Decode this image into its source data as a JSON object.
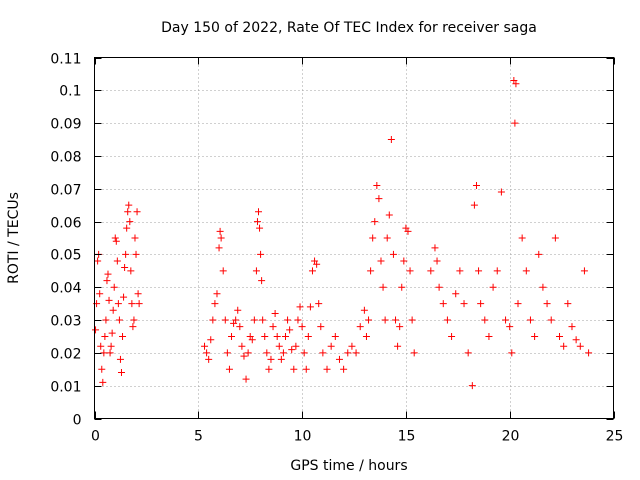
{
  "chart_data": {
    "type": "scatter",
    "title": "Day 150 of 2022, Rate Of TEC Index for receiver saga",
    "xlabel": "GPS time / hours",
    "ylabel": "ROTI / TECUs",
    "xlim": [
      0,
      25
    ],
    "ylim": [
      0,
      0.11
    ],
    "x_ticks": [
      0,
      5,
      10,
      15,
      20,
      25
    ],
    "x_tick_labels": [
      "0",
      "5",
      "10",
      "15",
      "20",
      "25"
    ],
    "y_ticks": [
      0,
      0.01,
      0.02,
      0.03,
      0.04,
      0.05,
      0.06,
      0.07,
      0.08,
      0.09,
      0.1,
      0.11
    ],
    "y_tick_labels": [
      "0",
      "0.01",
      "0.02",
      "0.03",
      "0.04",
      "0.05",
      "0.06",
      "0.07",
      "0.08",
      "0.09",
      "0.1",
      "0.11"
    ],
    "grid": true,
    "marker": "+",
    "color": "#ff0000",
    "series": [
      {
        "points": [
          [
            0.05,
            0.027
          ],
          [
            0.1,
            0.035
          ],
          [
            0.15,
            0.048
          ],
          [
            0.2,
            0.05
          ],
          [
            0.25,
            0.038
          ],
          [
            0.3,
            0.022
          ],
          [
            0.35,
            0.015
          ],
          [
            0.4,
            0.011
          ],
          [
            0.45,
            0.02
          ],
          [
            0.5,
            0.025
          ],
          [
            0.55,
            0.03
          ],
          [
            0.6,
            0.042
          ],
          [
            0.65,
            0.044
          ],
          [
            0.7,
            0.036
          ],
          [
            0.75,
            0.02
          ],
          [
            0.8,
            0.022
          ],
          [
            0.85,
            0.026
          ],
          [
            0.9,
            0.033
          ],
          [
            0.95,
            0.04
          ],
          [
            1.0,
            0.055
          ],
          [
            1.05,
            0.054
          ],
          [
            1.1,
            0.048
          ],
          [
            1.15,
            0.035
          ],
          [
            1.2,
            0.03
          ],
          [
            1.25,
            0.018
          ],
          [
            1.3,
            0.014
          ],
          [
            1.35,
            0.025
          ],
          [
            1.4,
            0.037
          ],
          [
            1.45,
            0.046
          ],
          [
            1.5,
            0.05
          ],
          [
            1.55,
            0.058
          ],
          [
            1.6,
            0.063
          ],
          [
            1.65,
            0.065
          ],
          [
            1.7,
            0.06
          ],
          [
            1.75,
            0.045
          ],
          [
            1.8,
            0.035
          ],
          [
            1.85,
            0.028
          ],
          [
            1.9,
            0.03
          ],
          [
            1.95,
            0.055
          ],
          [
            2.0,
            0.05
          ],
          [
            2.05,
            0.063
          ],
          [
            2.1,
            0.038
          ],
          [
            2.15,
            0.035
          ],
          [
            5.3,
            0.022
          ],
          [
            5.4,
            0.02
          ],
          [
            5.5,
            0.018
          ],
          [
            5.6,
            0.024
          ],
          [
            5.7,
            0.03
          ],
          [
            5.8,
            0.035
          ],
          [
            5.9,
            0.038
          ],
          [
            6.0,
            0.052
          ],
          [
            6.05,
            0.057
          ],
          [
            6.1,
            0.055
          ],
          [
            6.2,
            0.045
          ],
          [
            6.3,
            0.03
          ],
          [
            6.4,
            0.02
          ],
          [
            6.5,
            0.015
          ],
          [
            6.6,
            0.025
          ],
          [
            6.7,
            0.029
          ],
          [
            6.8,
            0.03
          ],
          [
            6.9,
            0.033
          ],
          [
            7.0,
            0.028
          ],
          [
            7.1,
            0.022
          ],
          [
            7.2,
            0.019
          ],
          [
            7.3,
            0.012
          ],
          [
            7.4,
            0.02
          ],
          [
            7.5,
            0.025
          ],
          [
            7.6,
            0.024
          ],
          [
            7.7,
            0.03
          ],
          [
            7.8,
            0.045
          ],
          [
            7.85,
            0.06
          ],
          [
            7.9,
            0.063
          ],
          [
            7.95,
            0.058
          ],
          [
            8.0,
            0.05
          ],
          [
            8.05,
            0.042
          ],
          [
            8.1,
            0.03
          ],
          [
            8.2,
            0.025
          ],
          [
            8.3,
            0.02
          ],
          [
            8.4,
            0.015
          ],
          [
            8.5,
            0.018
          ],
          [
            8.6,
            0.028
          ],
          [
            8.7,
            0.032
          ],
          [
            8.8,
            0.025
          ],
          [
            8.9,
            0.022
          ],
          [
            9.0,
            0.018
          ],
          [
            9.1,
            0.02
          ],
          [
            9.2,
            0.025
          ],
          [
            9.3,
            0.03
          ],
          [
            9.4,
            0.027
          ],
          [
            9.5,
            0.021
          ],
          [
            9.6,
            0.015
          ],
          [
            9.7,
            0.022
          ],
          [
            9.8,
            0.03
          ],
          [
            9.9,
            0.034
          ],
          [
            10.0,
            0.028
          ],
          [
            10.1,
            0.02
          ],
          [
            10.2,
            0.015
          ],
          [
            10.3,
            0.025
          ],
          [
            10.4,
            0.034
          ],
          [
            10.5,
            0.045
          ],
          [
            10.6,
            0.048
          ],
          [
            10.7,
            0.047
          ],
          [
            10.8,
            0.035
          ],
          [
            10.9,
            0.028
          ],
          [
            11.0,
            0.02
          ],
          [
            11.2,
            0.015
          ],
          [
            11.4,
            0.022
          ],
          [
            11.6,
            0.025
          ],
          [
            11.8,
            0.018
          ],
          [
            12.0,
            0.015
          ],
          [
            12.2,
            0.02
          ],
          [
            12.4,
            0.022
          ],
          [
            12.6,
            0.02
          ],
          [
            12.8,
            0.028
          ],
          [
            13.0,
            0.033
          ],
          [
            13.1,
            0.025
          ],
          [
            13.2,
            0.03
          ],
          [
            13.3,
            0.045
          ],
          [
            13.4,
            0.055
          ],
          [
            13.5,
            0.06
          ],
          [
            13.6,
            0.071
          ],
          [
            13.7,
            0.067
          ],
          [
            13.8,
            0.048
          ],
          [
            13.9,
            0.04
          ],
          [
            14.0,
            0.03
          ],
          [
            14.1,
            0.055
          ],
          [
            14.2,
            0.062
          ],
          [
            14.3,
            0.085
          ],
          [
            14.4,
            0.05
          ],
          [
            14.5,
            0.03
          ],
          [
            14.6,
            0.022
          ],
          [
            14.7,
            0.028
          ],
          [
            14.8,
            0.04
          ],
          [
            14.9,
            0.048
          ],
          [
            15.0,
            0.058
          ],
          [
            15.1,
            0.057
          ],
          [
            15.2,
            0.045
          ],
          [
            15.3,
            0.03
          ],
          [
            15.4,
            0.02
          ],
          [
            16.2,
            0.045
          ],
          [
            16.4,
            0.052
          ],
          [
            16.5,
            0.048
          ],
          [
            16.6,
            0.04
          ],
          [
            16.8,
            0.035
          ],
          [
            17.0,
            0.03
          ],
          [
            17.2,
            0.025
          ],
          [
            17.4,
            0.038
          ],
          [
            17.6,
            0.045
          ],
          [
            17.8,
            0.035
          ],
          [
            18.0,
            0.02
          ],
          [
            18.2,
            0.01
          ],
          [
            18.3,
            0.065
          ],
          [
            18.4,
            0.071
          ],
          [
            18.5,
            0.045
          ],
          [
            18.6,
            0.035
          ],
          [
            18.8,
            0.03
          ],
          [
            19.0,
            0.025
          ],
          [
            19.2,
            0.04
          ],
          [
            19.4,
            0.045
          ],
          [
            19.6,
            0.069
          ],
          [
            19.8,
            0.03
          ],
          [
            20.0,
            0.028
          ],
          [
            20.1,
            0.02
          ],
          [
            20.2,
            0.103
          ],
          [
            20.3,
            0.102
          ],
          [
            20.25,
            0.09
          ],
          [
            20.4,
            0.035
          ],
          [
            20.6,
            0.055
          ],
          [
            20.8,
            0.045
          ],
          [
            21.0,
            0.03
          ],
          [
            21.2,
            0.025
          ],
          [
            21.4,
            0.05
          ],
          [
            21.6,
            0.04
          ],
          [
            21.8,
            0.035
          ],
          [
            22.0,
            0.03
          ],
          [
            22.2,
            0.055
          ],
          [
            22.4,
            0.025
          ],
          [
            22.6,
            0.022
          ],
          [
            22.8,
            0.035
          ],
          [
            23.0,
            0.028
          ],
          [
            23.2,
            0.024
          ],
          [
            23.4,
            0.022
          ],
          [
            23.6,
            0.045
          ],
          [
            23.8,
            0.02
          ]
        ]
      }
    ]
  }
}
